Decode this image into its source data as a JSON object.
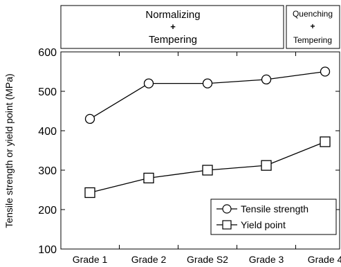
{
  "header": {
    "group1": {
      "line1": "Normalizing",
      "line2": "+",
      "line3": "Tempering"
    },
    "group2": {
      "line1": "Quenching",
      "line2": "+",
      "line3": "Tempering"
    }
  },
  "chart_data": {
    "type": "line",
    "categories": [
      "Grade 1",
      "Grade 2",
      "Grade S2",
      "Grade 3",
      "Grade 4"
    ],
    "ylabel": "Tensile strength or yield point (MPa)",
    "ylim": [
      100,
      600
    ],
    "yticks": [
      100,
      200,
      300,
      400,
      500,
      600
    ],
    "grid": false,
    "legend_position": "bottom-right",
    "series": [
      {
        "name": "Tensile strength",
        "marker": "circle",
        "values": [
          430,
          520,
          520,
          530,
          550
        ]
      },
      {
        "name": "Yield point",
        "marker": "square",
        "values": [
          243,
          280,
          300,
          312,
          372
        ]
      }
    ]
  }
}
